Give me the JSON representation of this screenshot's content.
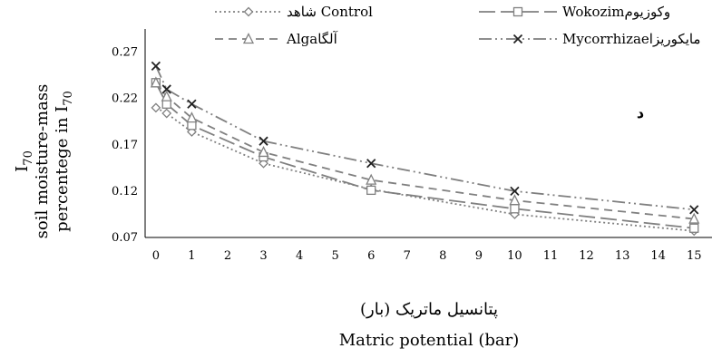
{
  "chart_data": {
    "type": "line",
    "title": "",
    "panel_label": "د",
    "xlabel_fa": "پتانسیل ماتریک (بار)",
    "xlabel_en": "Matric potential (bar)",
    "ylabel_line1": "I",
    "ylabel_sub1": "70",
    "ylabel_line2": "soil moisture-mass",
    "ylabel_line3": "percentege in I",
    "ylabel_sub3": "70",
    "xlim": [
      -0.3,
      15.5
    ],
    "ylim": [
      0.07,
      0.295
    ],
    "xticks": [
      "0",
      "1",
      "2",
      "3",
      "4",
      "5",
      "6",
      "7",
      "8",
      "9",
      "10",
      "11",
      "12",
      "13",
      "14",
      "15"
    ],
    "yticks": [
      "0.07",
      "0.12",
      "0.17",
      "0.22",
      "0.27"
    ],
    "x": [
      0,
      0.3,
      1,
      3,
      6,
      10,
      15
    ],
    "legend_position": "top",
    "series": [
      {
        "name": "شاهد Control",
        "values": [
          0.21,
          0.204,
          0.184,
          0.15,
          0.122,
          0.095,
          0.077
        ],
        "marker": "diamond",
        "dash": "2,3",
        "color": "#808080"
      },
      {
        "name": "Wokozimوکوزیوم",
        "values": [
          0.237,
          0.214,
          0.191,
          0.157,
          0.121,
          0.101,
          0.08
        ],
        "marker": "square",
        "dash": "18,6",
        "color": "#808080"
      },
      {
        "name": "Algaآلگا",
        "values": [
          0.237,
          0.222,
          0.199,
          0.162,
          0.132,
          0.11,
          0.09
        ],
        "marker": "triangle",
        "dash": "9,6",
        "color": "#808080"
      },
      {
        "name": "Mycorrhizaeمایکوریزا",
        "values": [
          0.255,
          0.23,
          0.214,
          0.174,
          0.15,
          0.12,
          0.1
        ],
        "marker": "x",
        "dash": "14,4,2,4,2,4",
        "color": "#7f7f7f"
      }
    ]
  }
}
